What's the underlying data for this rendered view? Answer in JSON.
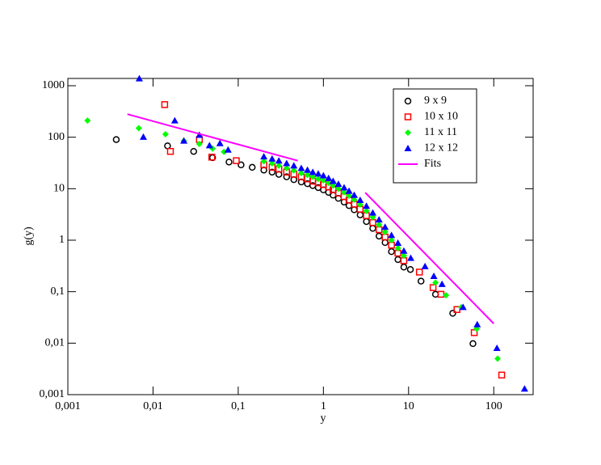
{
  "chart_data": {
    "type": "scatter",
    "xlabel": "y",
    "ylabel": "g(y)",
    "xscale": "log",
    "yscale": "log",
    "xlim": [
      0.001,
      290
    ],
    "ylim": [
      0.001,
      1385
    ],
    "xticks": [
      {
        "value": 0.001,
        "label": "0,001"
      },
      {
        "value": 0.01,
        "label": "0,01"
      },
      {
        "value": 0.1,
        "label": "0,1"
      },
      1,
      10,
      100
    ],
    "yticks": [
      {
        "value": 0.001,
        "label": "0,001"
      },
      {
        "value": 0.01,
        "label": "0,01"
      },
      {
        "value": 0.1,
        "label": "0,1"
      },
      1,
      10,
      100,
      1000
    ],
    "legend": "upper right",
    "series": [
      {
        "name": "9 x 9",
        "color": "#000000",
        "marker": "circle",
        "x": [
          0.0037,
          0.0148,
          0.03,
          0.05,
          0.078,
          0.108,
          0.146,
          0.2,
          0.25,
          0.3,
          0.37,
          0.45,
          0.55,
          0.65,
          0.75,
          0.87,
          1,
          1.15,
          1.3,
          1.5,
          1.75,
          2,
          2.3,
          2.7,
          3.2,
          3.8,
          4.5,
          5.3,
          6.3,
          7.5,
          8.8,
          10.5,
          14,
          20.7,
          33,
          57
        ],
        "values": [
          90,
          68,
          53,
          40,
          33,
          29,
          26,
          23,
          21,
          19,
          17,
          15,
          13.5,
          12.5,
          11.5,
          10.5,
          9.5,
          8.5,
          7.5,
          6.5,
          5.5,
          4.7,
          3.9,
          3.1,
          2.3,
          1.7,
          1.2,
          0.9,
          0.6,
          0.42,
          0.3,
          0.27,
          0.16,
          0.089,
          0.038,
          0.0098
        ]
      },
      {
        "name": "10 x 10",
        "color": "#ff0000",
        "marker": "square",
        "x": [
          0.0137,
          0.016,
          0.035,
          0.049,
          0.095,
          0.2,
          0.25,
          0.3,
          0.37,
          0.45,
          0.55,
          0.65,
          0.75,
          0.87,
          1,
          1.15,
          1.3,
          1.5,
          1.75,
          2,
          2.3,
          2.7,
          3.2,
          3.8,
          4.5,
          5.3,
          6.3,
          7.5,
          8.8,
          13.4,
          19.4,
          24,
          37,
          59,
          124
        ],
        "values": [
          430,
          53,
          90,
          41,
          35,
          29,
          26,
          24,
          21,
          19,
          17,
          15.5,
          14,
          13,
          12,
          10.8,
          9.5,
          8.2,
          7,
          6,
          5,
          4,
          3,
          2.2,
          1.6,
          1.15,
          0.8,
          0.56,
          0.4,
          0.24,
          0.12,
          0.089,
          0.045,
          0.016,
          0.0024
        ]
      },
      {
        "name": "11 x 11",
        "color": "#00ff00",
        "marker": "diamond",
        "x": [
          0.0017,
          0.0068,
          0.014,
          0.023,
          0.035,
          0.05,
          0.068,
          0.2,
          0.25,
          0.3,
          0.37,
          0.45,
          0.55,
          0.65,
          0.75,
          0.87,
          1,
          1.15,
          1.3,
          1.5,
          1.75,
          2,
          2.3,
          2.7,
          3.2,
          3.8,
          4.5,
          5.3,
          6.3,
          7.5,
          8.8,
          20.7,
          27.5,
          41.6,
          63,
          111
        ],
        "values": [
          210,
          150,
          114,
          85,
          74,
          60,
          52,
          34,
          31,
          28,
          25,
          22.5,
          20,
          18.5,
          17,
          15.5,
          14.5,
          13,
          11.5,
          10,
          8.5,
          7.3,
          6.1,
          4.9,
          3.7,
          2.8,
          2,
          1.45,
          1,
          0.7,
          0.5,
          0.15,
          0.085,
          0.05,
          0.019,
          0.005
        ]
      },
      {
        "name": "12 x 12",
        "color": "#0000ff",
        "marker": "triangle",
        "x": [
          0.0069,
          0.0077,
          0.018,
          0.023,
          0.035,
          0.046,
          0.061,
          0.076,
          0.2,
          0.25,
          0.3,
          0.37,
          0.45,
          0.55,
          0.65,
          0.75,
          0.87,
          1,
          1.15,
          1.3,
          1.5,
          1.75,
          2,
          2.3,
          2.7,
          3.2,
          3.8,
          4.5,
          5.3,
          6.3,
          7.5,
          8.8,
          10.6,
          15.6,
          19.8,
          24.7,
          43.6,
          64,
          109,
          230
        ],
        "values": [
          1380,
          101,
          210,
          85,
          110,
          69,
          76,
          57,
          42,
          38,
          35,
          31,
          28,
          25,
          23,
          21,
          19.5,
          18,
          16,
          14,
          12.3,
          10.5,
          9,
          7.5,
          6,
          4.6,
          3.4,
          2.5,
          1.8,
          1.25,
          0.88,
          0.62,
          0.45,
          0.31,
          0.2,
          0.14,
          0.05,
          0.023,
          0.008,
          0.0013
        ]
      },
      {
        "name": "Fits",
        "color": "#ff00ff",
        "marker": "line",
        "x": [
          0.005,
          0.5,
          null,
          3.1,
          100
        ],
        "values": [
          280,
          35,
          null,
          8.4,
          0.024
        ]
      }
    ]
  }
}
